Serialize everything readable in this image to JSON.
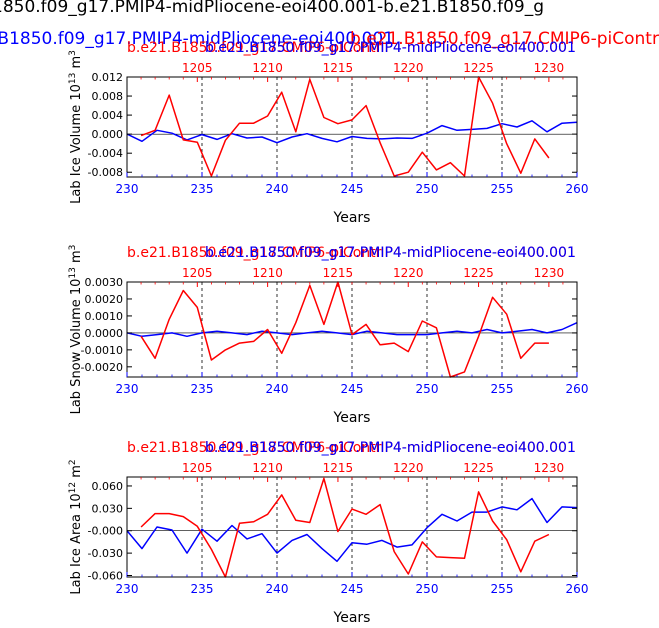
{
  "figure": {
    "title_line1": "1850.f09_g17.PMIP4-midPliocene-eoi400.001-b.e21.B1850.f09_g",
    "title_line2_blue": ".B1850.f09_g17.PMIP4-midPliocene-eoi400.001",
    "title_line2_red": "b.e21.B1850.f09_g17.CMIP6-piContr"
  },
  "colors": {
    "red": "#ff0000",
    "blue": "#0000ff",
    "axis": "#000000"
  },
  "chart_data": [
    {
      "type": "line",
      "ylabel": "Lab Ice Volume 10",
      "ylabel_exp": "13",
      "ylabel_unit": " m",
      "ylabel_unit_exp": "3",
      "xlabel": "Years",
      "xlim": [
        230,
        260
      ],
      "ylim": [
        -0.009,
        0.012
      ],
      "x_ticks": [
        "230",
        "235",
        "240",
        "245",
        "250",
        "255",
        "260"
      ],
      "y_ticks": [
        "0.012",
        "0.008",
        "0.004",
        "0.000",
        "-0.004",
        "-0.008"
      ],
      "y_tick_values": [
        0.012,
        0.008,
        0.004,
        0.0,
        -0.004,
        -0.008
      ],
      "top_axis_ticks": [
        "1205",
        "1210",
        "1215",
        "1220",
        "1225",
        "1230"
      ],
      "top_axis_tick_values": [
        1205,
        1210,
        1215,
        1220,
        1225,
        1230
      ],
      "top_axis_range": [
        1200,
        1232
      ],
      "vlines": [
        235,
        240,
        245,
        250,
        255
      ],
      "legend_red": "b.e21.B1850.f09_g17.CMIP6-piContr",
      "legend_red_b": "b.e21.B1850.f09_g17.PMIP4-midPliocene-eoi400.001",
      "legend_blue": "b.e21.B1850.f09_g17.PMIP4-midPliocene-eoi400.001",
      "series": [
        {
          "color": "blue",
          "x": [
            230,
            231,
            232,
            233,
            234,
            235,
            236,
            237,
            238,
            239,
            240,
            241,
            242,
            243,
            244,
            245,
            246,
            247,
            248,
            249,
            250,
            251,
            252,
            253,
            254,
            255,
            256,
            257,
            258,
            259,
            260
          ],
          "y": [
            0.0,
            -0.0015,
            0.0008,
            0.0002,
            -0.0012,
            -0.0001,
            -0.0011,
            0.0001,
            -0.0008,
            -0.0006,
            -0.0018,
            -0.0006,
            0.0001,
            -0.0009,
            -0.0016,
            -0.0005,
            -0.0009,
            -0.001,
            -0.0008,
            -0.0009,
            0.0002,
            0.0018,
            0.0008,
            0.001,
            0.0012,
            0.0022,
            0.0015,
            0.0028,
            0.0005,
            0.0023,
            0.0025
          ]
        },
        {
          "color": "red",
          "x": [
            1201,
            1202,
            1203,
            1204,
            1205,
            1206,
            1207,
            1208,
            1209,
            1210,
            1211,
            1212,
            1213,
            1214,
            1215,
            1216,
            1217,
            1218,
            1219,
            1220,
            1221,
            1222,
            1223,
            1224,
            1225,
            1226,
            1227,
            1228,
            1229,
            1230
          ],
          "y": [
            -0.0003,
            0.0008,
            0.0082,
            -0.0012,
            -0.0017,
            -0.0088,
            -0.0013,
            0.0023,
            0.0023,
            0.0038,
            0.0088,
            0.0005,
            0.0115,
            0.0035,
            0.0022,
            0.003,
            0.006,
            -0.0018,
            -0.0088,
            -0.008,
            -0.0038,
            -0.0075,
            -0.006,
            -0.0088,
            0.012,
            0.0065,
            -0.002,
            -0.0082,
            -0.001,
            -0.005
          ]
        }
      ]
    },
    {
      "type": "line",
      "ylabel": "Lab Snow Volume 10",
      "ylabel_exp": "13",
      "ylabel_unit": " m",
      "ylabel_unit_exp": "3",
      "xlabel": "Years",
      "xlim": [
        230,
        260
      ],
      "ylim": [
        -0.0026,
        0.003
      ],
      "x_ticks": [
        "230",
        "235",
        "240",
        "245",
        "250",
        "255",
        "260"
      ],
      "y_ticks": [
        "0.0030",
        "0.0020",
        "0.0010",
        "0.0000",
        "-0.0010",
        "-0.0020"
      ],
      "y_tick_values": [
        0.003,
        0.002,
        0.001,
        0.0,
        -0.001,
        -0.002
      ],
      "top_axis_ticks": [
        "1205",
        "1210",
        "1215",
        "1220",
        "1225",
        "1230"
      ],
      "top_axis_tick_values": [
        1205,
        1210,
        1215,
        1220,
        1225,
        1230
      ],
      "top_axis_range": [
        1200,
        1232
      ],
      "vlines": [
        235,
        240,
        245,
        250,
        255
      ],
      "legend_red": "b.e21.B1850.f09_g17.CMIP6-piContr",
      "legend_red_b": "b.e21.B1850.f09_g17.PMIP4-midPliocene-eoi400.001",
      "legend_blue": "b.e21.B1850.f09_g17.PMIP4-midPliocene-eoi400.001",
      "series": [
        {
          "color": "blue",
          "x": [
            230,
            231,
            232,
            233,
            234,
            235,
            236,
            237,
            238,
            239,
            240,
            241,
            242,
            243,
            244,
            245,
            246,
            247,
            248,
            249,
            250,
            251,
            252,
            253,
            254,
            255,
            256,
            257,
            258,
            259,
            260
          ],
          "y": [
            0.0,
            -0.0002,
            -0.0001,
            0.0,
            -0.0002,
            0.0,
            0.0001,
            0.0,
            -0.0001,
            0.0001,
            0.0,
            -0.0001,
            0.0,
            0.0001,
            0.0,
            -0.0001,
            0.0001,
            0.0,
            -0.0001,
            -0.0001,
            -0.0001,
            0.0,
            0.0001,
            0.0,
            0.0002,
            0.0,
            0.0001,
            0.0002,
            0.0,
            0.0002,
            0.0006
          ]
        },
        {
          "color": "red",
          "x": [
            1201,
            1202,
            1203,
            1204,
            1205,
            1206,
            1207,
            1208,
            1209,
            1210,
            1211,
            1212,
            1213,
            1214,
            1215,
            1216,
            1217,
            1218,
            1219,
            1220,
            1221,
            1222,
            1223,
            1224,
            1225,
            1226,
            1227,
            1228,
            1229,
            1230
          ],
          "y": [
            -0.0002,
            -0.0015,
            0.0008,
            0.0025,
            0.0015,
            -0.0016,
            -0.001,
            -0.0006,
            -0.0005,
            0.0002,
            -0.0012,
            0.0006,
            0.0028,
            0.0005,
            0.003,
            -0.0001,
            0.0005,
            -0.0007,
            -0.0006,
            -0.0011,
            0.0007,
            0.0003,
            -0.0026,
            -0.0023,
            -0.0002,
            0.0021,
            0.0011,
            -0.0015,
            -0.0006,
            -0.0006
          ]
        }
      ]
    },
    {
      "type": "line",
      "ylabel": "Lab Ice Area 10",
      "ylabel_exp": "12",
      "ylabel_unit": " m",
      "ylabel_unit_exp": "2",
      "xlabel": "Years",
      "xlim": [
        230,
        260
      ],
      "ylim": [
        -0.062,
        0.072
      ],
      "x_ticks": [
        "230",
        "235",
        "240",
        "245",
        "250",
        "255",
        "260"
      ],
      "y_ticks": [
        "0.060",
        "0.030",
        "-0.000",
        "-0.030",
        "-0.060"
      ],
      "y_tick_values": [
        0.06,
        0.03,
        0.0,
        -0.03,
        -0.06
      ],
      "top_axis_ticks": [
        "1205",
        "1210",
        "1215",
        "1220",
        "1225",
        "1230"
      ],
      "top_axis_tick_values": [
        1205,
        1210,
        1215,
        1220,
        1225,
        1230
      ],
      "top_axis_range": [
        1200,
        1232
      ],
      "vlines": [
        235,
        240,
        245,
        250,
        255
      ],
      "legend_red": "b.e21.B1850.f09_g17.CMIP6-piContr",
      "legend_red_b": "b.e21.B1850.f09_g17.PMIP4-midPliocene-eoi400.001",
      "legend_blue": "b.e21.B1850.f09_g17.PMIP4-midPliocene-eoi400.001",
      "series": [
        {
          "color": "blue",
          "x": [
            230,
            231,
            232,
            233,
            234,
            235,
            236,
            237,
            238,
            239,
            240,
            241,
            242,
            243,
            244,
            245,
            246,
            247,
            248,
            249,
            250,
            251,
            252,
            253,
            254,
            255,
            256,
            257,
            258,
            259,
            260
          ],
          "y": [
            0.0,
            -0.024,
            0.005,
            0.001,
            -0.03,
            0.002,
            -0.014,
            0.007,
            -0.011,
            -0.004,
            -0.03,
            -0.013,
            -0.005,
            -0.024,
            -0.041,
            -0.016,
            -0.018,
            -0.013,
            -0.022,
            -0.019,
            0.004,
            0.022,
            0.013,
            0.025,
            0.025,
            0.032,
            0.028,
            0.043,
            0.011,
            0.032,
            0.031
          ]
        },
        {
          "color": "red",
          "x": [
            1201,
            1202,
            1203,
            1204,
            1205,
            1206,
            1207,
            1208,
            1209,
            1210,
            1211,
            1212,
            1213,
            1214,
            1215,
            1216,
            1217,
            1218,
            1219,
            1220,
            1221,
            1222,
            1223,
            1224,
            1225,
            1226,
            1227,
            1228,
            1229,
            1230
          ],
          "y": [
            0.005,
            0.023,
            0.023,
            0.019,
            0.006,
            -0.025,
            -0.062,
            0.01,
            0.012,
            0.022,
            0.048,
            0.014,
            0.011,
            0.07,
            -0.001,
            0.029,
            0.022,
            0.035,
            -0.028,
            -0.058,
            -0.015,
            -0.035,
            -0.036,
            -0.037,
            0.052,
            0.013,
            -0.012,
            -0.055,
            -0.014,
            -0.005
          ]
        }
      ]
    }
  ]
}
